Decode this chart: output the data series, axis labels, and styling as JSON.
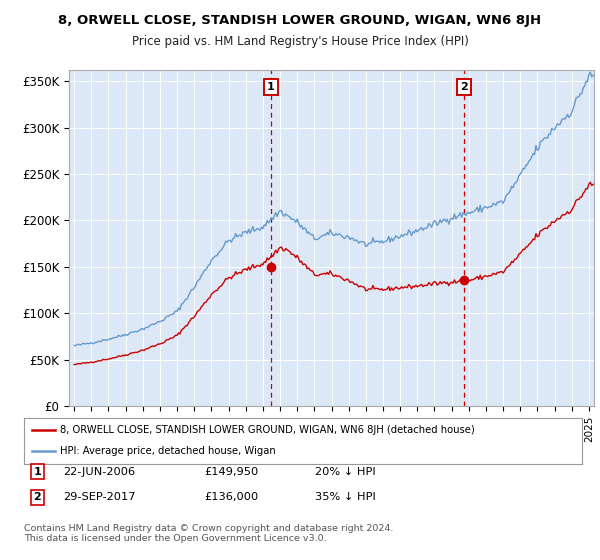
{
  "title": "8, ORWELL CLOSE, STANDISH LOWER GROUND, WIGAN, WN6 8JH",
  "subtitle": "Price paid vs. HM Land Registry's House Price Index (HPI)",
  "ylabel_ticks": [
    "£0",
    "£50K",
    "£100K",
    "£150K",
    "£200K",
    "£250K",
    "£300K",
    "£350K"
  ],
  "ytick_values": [
    0,
    50000,
    100000,
    150000,
    200000,
    250000,
    300000,
    350000
  ],
  "ylim": [
    0,
    362000
  ],
  "sale1_date": "22-JUN-2006",
  "sale1_price": 149950,
  "sale1_hpi_pct": "20% ↓ HPI",
  "sale1_x": 2006.47,
  "sale2_date": "29-SEP-2017",
  "sale2_price": 136000,
  "sale2_hpi_pct": "35% ↓ HPI",
  "sale2_x": 2017.75,
  "legend_label1": "8, ORWELL CLOSE, STANDISH LOWER GROUND, WIGAN, WN6 8JH (detached house)",
  "legend_label2": "HPI: Average price, detached house, Wigan",
  "footnote1": "Contains HM Land Registry data © Crown copyright and database right 2024.",
  "footnote2": "This data is licensed under the Open Government Licence v3.0.",
  "hpi_color": "#6699cc",
  "sale_color": "#cc0000",
  "bg_color": "#dce8f5",
  "plot_bg": "#ffffff",
  "shade_color": "#dce8f5",
  "hpi_base": {
    "1995.0": 65000,
    "1996.0": 68000,
    "1997.0": 72000,
    "1998.0": 77000,
    "1999.0": 83000,
    "2000.0": 91000,
    "2001.0": 102000,
    "2002.0": 128000,
    "2003.0": 157000,
    "2004.0": 178000,
    "2005.0": 187000,
    "2006.0": 193000,
    "2007.0": 210000,
    "2008.0": 198000,
    "2009.0": 180000,
    "2010.0": 186000,
    "2011.0": 182000,
    "2012.0": 174000,
    "2013.0": 177000,
    "2014.0": 183000,
    "2015.0": 189000,
    "2016.0": 196000,
    "2017.0": 203000,
    "2018.0": 208000,
    "2019.0": 214000,
    "2020.0": 220000,
    "2021.0": 248000,
    "2022.0": 278000,
    "2023.0": 300000,
    "2024.0": 318000,
    "2025.0": 355000
  }
}
